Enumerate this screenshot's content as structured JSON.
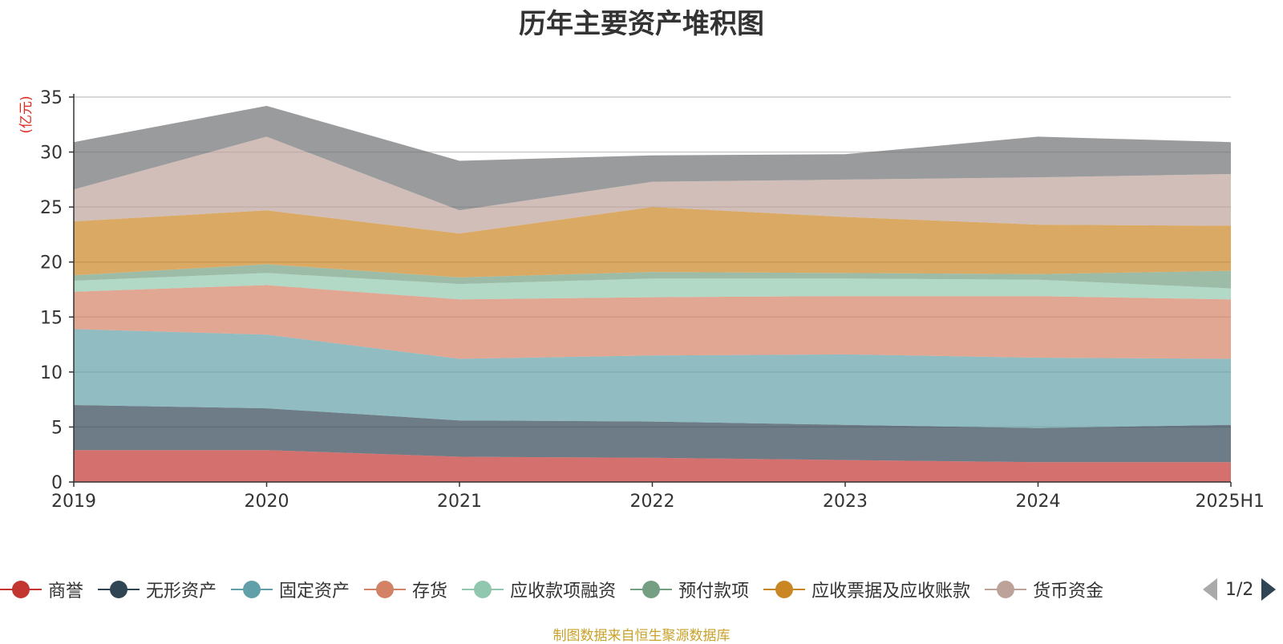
{
  "chart_data": {
    "type": "area",
    "stacked": true,
    "title": "历年主要资产堆积图",
    "ylabel": "(亿元)",
    "xlabel": "",
    "categories": [
      "2019",
      "2020",
      "2021",
      "2022",
      "2023",
      "2024",
      "2025H1"
    ],
    "ylim": [
      0,
      35
    ],
    "yticks": [
      0,
      5,
      10,
      15,
      20,
      25,
      30,
      35
    ],
    "grid": true,
    "legend_position": "bottom",
    "series": [
      {
        "name": "商誉",
        "color": "#c23531",
        "values": [
          2.9,
          2.9,
          2.3,
          2.2,
          2.0,
          1.8,
          1.8
        ]
      },
      {
        "name": "无形资产",
        "color": "#2f4554",
        "values": [
          4.1,
          3.8,
          3.3,
          3.3,
          3.2,
          3.1,
          3.4
        ]
      },
      {
        "name": "固定资产",
        "color": "#61a0a8",
        "values": [
          6.9,
          6.7,
          5.6,
          6.0,
          6.4,
          6.4,
          6.0
        ]
      },
      {
        "name": "存货",
        "color": "#d48265",
        "values": [
          3.4,
          4.5,
          5.4,
          5.3,
          5.3,
          5.6,
          5.4
        ]
      },
      {
        "name": "应收款项融资",
        "color": "#91c7ae",
        "values": [
          1.0,
          1.1,
          1.4,
          1.7,
          1.6,
          1.5,
          1.0
        ]
      },
      {
        "name": "预付款项",
        "color": "#749f83",
        "values": [
          0.5,
          0.8,
          0.6,
          0.6,
          0.5,
          0.5,
          1.6
        ]
      },
      {
        "name": "应收票据及应收账款",
        "color": "#ca8622",
        "values": [
          4.9,
          4.9,
          4.0,
          5.9,
          5.1,
          4.5,
          4.1
        ]
      },
      {
        "name": "货币资金",
        "color": "#bda29a",
        "values": [
          2.9,
          6.7,
          2.1,
          2.3,
          3.4,
          4.3,
          4.7
        ]
      },
      {
        "name": "",
        "color": "#6e7074",
        "values": [
          4.3,
          2.8,
          4.5,
          2.4,
          2.3,
          3.7,
          2.9
        ]
      }
    ]
  },
  "legend_labels": [
    "商誉",
    "无形资产",
    "固定资产",
    "存货",
    "应收款项融资",
    "预付款项",
    "应收票据及应收账款",
    "货币资金"
  ],
  "pager": {
    "text": "1/2"
  },
  "source_note": "制图数据来自恒生聚源数据库"
}
